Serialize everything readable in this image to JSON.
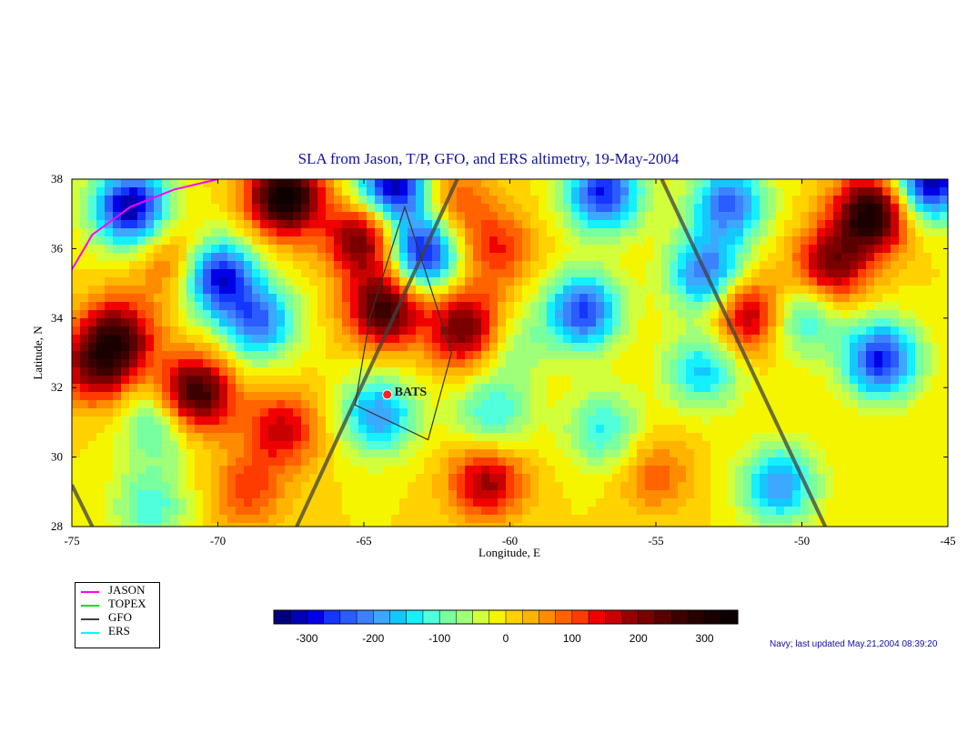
{
  "chart_data": {
    "type": "heatmap",
    "title": "SLA from Jason, T/P, GFO, and ERS altimetry, 19-May-2004",
    "xlabel": "Longitude, E",
    "ylabel": "Latitude, N",
    "xlim": [
      -75,
      -45
    ],
    "ylim": [
      28,
      38
    ],
    "x_ticks": [
      -75,
      -70,
      -65,
      -60,
      -55,
      -50,
      -45
    ],
    "y_ticks": [
      28,
      30,
      32,
      34,
      36,
      38
    ],
    "colorbar": {
      "range": [
        -350,
        350
      ],
      "step": 25,
      "ticks": [
        -300,
        -200,
        -100,
        0,
        100,
        200,
        300
      ],
      "colors": [
        "#00007f",
        "#0000b4",
        "#0000e6",
        "#1436ff",
        "#2a5cff",
        "#3c82ff",
        "#3ca8ff",
        "#14c8ff",
        "#14f0ff",
        "#50ffdc",
        "#78ffa0",
        "#a0ff78",
        "#d2ff3c",
        "#f5f500",
        "#ffd200",
        "#ffb400",
        "#ff8c00",
        "#ff6400",
        "#ff3c00",
        "#f00000",
        "#c80000",
        "#960000",
        "#7a0000",
        "#5a0000",
        "#3c0000",
        "#280000",
        "#1a0000",
        "#0d0000"
      ]
    },
    "anomalies": [
      {
        "lon": -70.0,
        "lat": 35.2,
        "value": -300
      },
      {
        "lon": -68.6,
        "lat": 33.9,
        "value": -220
      },
      {
        "lon": -63.0,
        "lat": 35.9,
        "value": -310
      },
      {
        "lon": -64.5,
        "lat": 31.2,
        "value": -200
      },
      {
        "lon": -57.5,
        "lat": 34.2,
        "value": -260
      },
      {
        "lon": -53.3,
        "lat": 35.3,
        "value": -230
      },
      {
        "lon": -47.3,
        "lat": 32.8,
        "value": -280
      },
      {
        "lon": -50.0,
        "lat": 34.0,
        "value": -140
      },
      {
        "lon": -50.8,
        "lat": 29.2,
        "value": -200
      },
      {
        "lon": -64.0,
        "lat": 37.8,
        "value": -330
      },
      {
        "lon": -56.8,
        "lat": 37.6,
        "value": -280
      },
      {
        "lon": -52.5,
        "lat": 37.3,
        "value": -230
      },
      {
        "lon": -45.6,
        "lat": 37.9,
        "value": -320
      },
      {
        "lon": -73.0,
        "lat": 37.2,
        "value": -330
      },
      {
        "lon": -53.4,
        "lat": 32.5,
        "value": -160
      },
      {
        "lon": -56.8,
        "lat": 30.8,
        "value": -130
      },
      {
        "lon": -60.6,
        "lat": 31.2,
        "value": -130
      },
      {
        "lon": -72.0,
        "lat": 31.0,
        "value": -140
      },
      {
        "lon": -72.3,
        "lat": 28.6,
        "value": -120
      },
      {
        "lon": -60.0,
        "lat": 33.2,
        "value": -90
      },
      {
        "lon": -67.7,
        "lat": 37.5,
        "value": 340
      },
      {
        "lon": -64.3,
        "lat": 34.3,
        "value": 270
      },
      {
        "lon": -61.5,
        "lat": 33.7,
        "value": 240
      },
      {
        "lon": -70.8,
        "lat": 31.8,
        "value": 300
      },
      {
        "lon": -73.4,
        "lat": 33.5,
        "value": 220
      },
      {
        "lon": -74.2,
        "lat": 32.6,
        "value": 200
      },
      {
        "lon": -67.8,
        "lat": 30.8,
        "value": 160
      },
      {
        "lon": -60.8,
        "lat": 29.3,
        "value": 190
      },
      {
        "lon": -47.6,
        "lat": 37.0,
        "value": 320
      },
      {
        "lon": -49.0,
        "lat": 35.5,
        "value": 210
      },
      {
        "lon": -51.8,
        "lat": 34.1,
        "value": 200
      },
      {
        "lon": -65.0,
        "lat": 36.3,
        "value": 240
      },
      {
        "lon": -60.5,
        "lat": 36.0,
        "value": 130
      },
      {
        "lon": -71.5,
        "lat": 35.6,
        "value": 110
      },
      {
        "lon": -69.0,
        "lat": 29.0,
        "value": 110
      },
      {
        "lon": -55.0,
        "lat": 29.5,
        "value": 90
      },
      {
        "lon": -62.0,
        "lat": 37.3,
        "value": 110
      }
    ],
    "tracks": [
      {
        "name": "GFO",
        "points": [
          [
            -67.3,
            28
          ],
          [
            -61.8,
            38
          ]
        ]
      },
      {
        "name": "GFO",
        "points": [
          [
            -54.8,
            38
          ],
          [
            -49.2,
            28
          ]
        ]
      },
      {
        "name": "GFO",
        "points": [
          [
            -75,
            29.2
          ],
          [
            -74.3,
            28
          ]
        ]
      },
      {
        "name": "JASON",
        "points": [
          [
            -75,
            35.4
          ],
          [
            -74.3,
            36.4
          ],
          [
            -73.0,
            37.2
          ],
          [
            -71.5,
            37.7
          ],
          [
            -70,
            38
          ]
        ]
      }
    ],
    "box": [
      [
        -64.8,
        34.0
      ],
      [
        -63.6,
        37.2
      ],
      [
        -62.0,
        33.0
      ],
      [
        -62.8,
        30.5
      ],
      [
        -65.3,
        31.5
      ]
    ],
    "station": {
      "label": "BATS",
      "lon": -64.2,
      "lat": 31.8
    },
    "legend": {
      "placement": "bottom-left",
      "entries": [
        {
          "label": "JASON",
          "color": "#ff00ff"
        },
        {
          "label": "TOPEX",
          "color": "#00e000"
        },
        {
          "label": "GFO",
          "color": "#404040"
        },
        {
          "label": "ERS",
          "color": "#00ffff"
        }
      ]
    }
  },
  "footer": "Navy; last updated May.21,2004 08:39:20"
}
